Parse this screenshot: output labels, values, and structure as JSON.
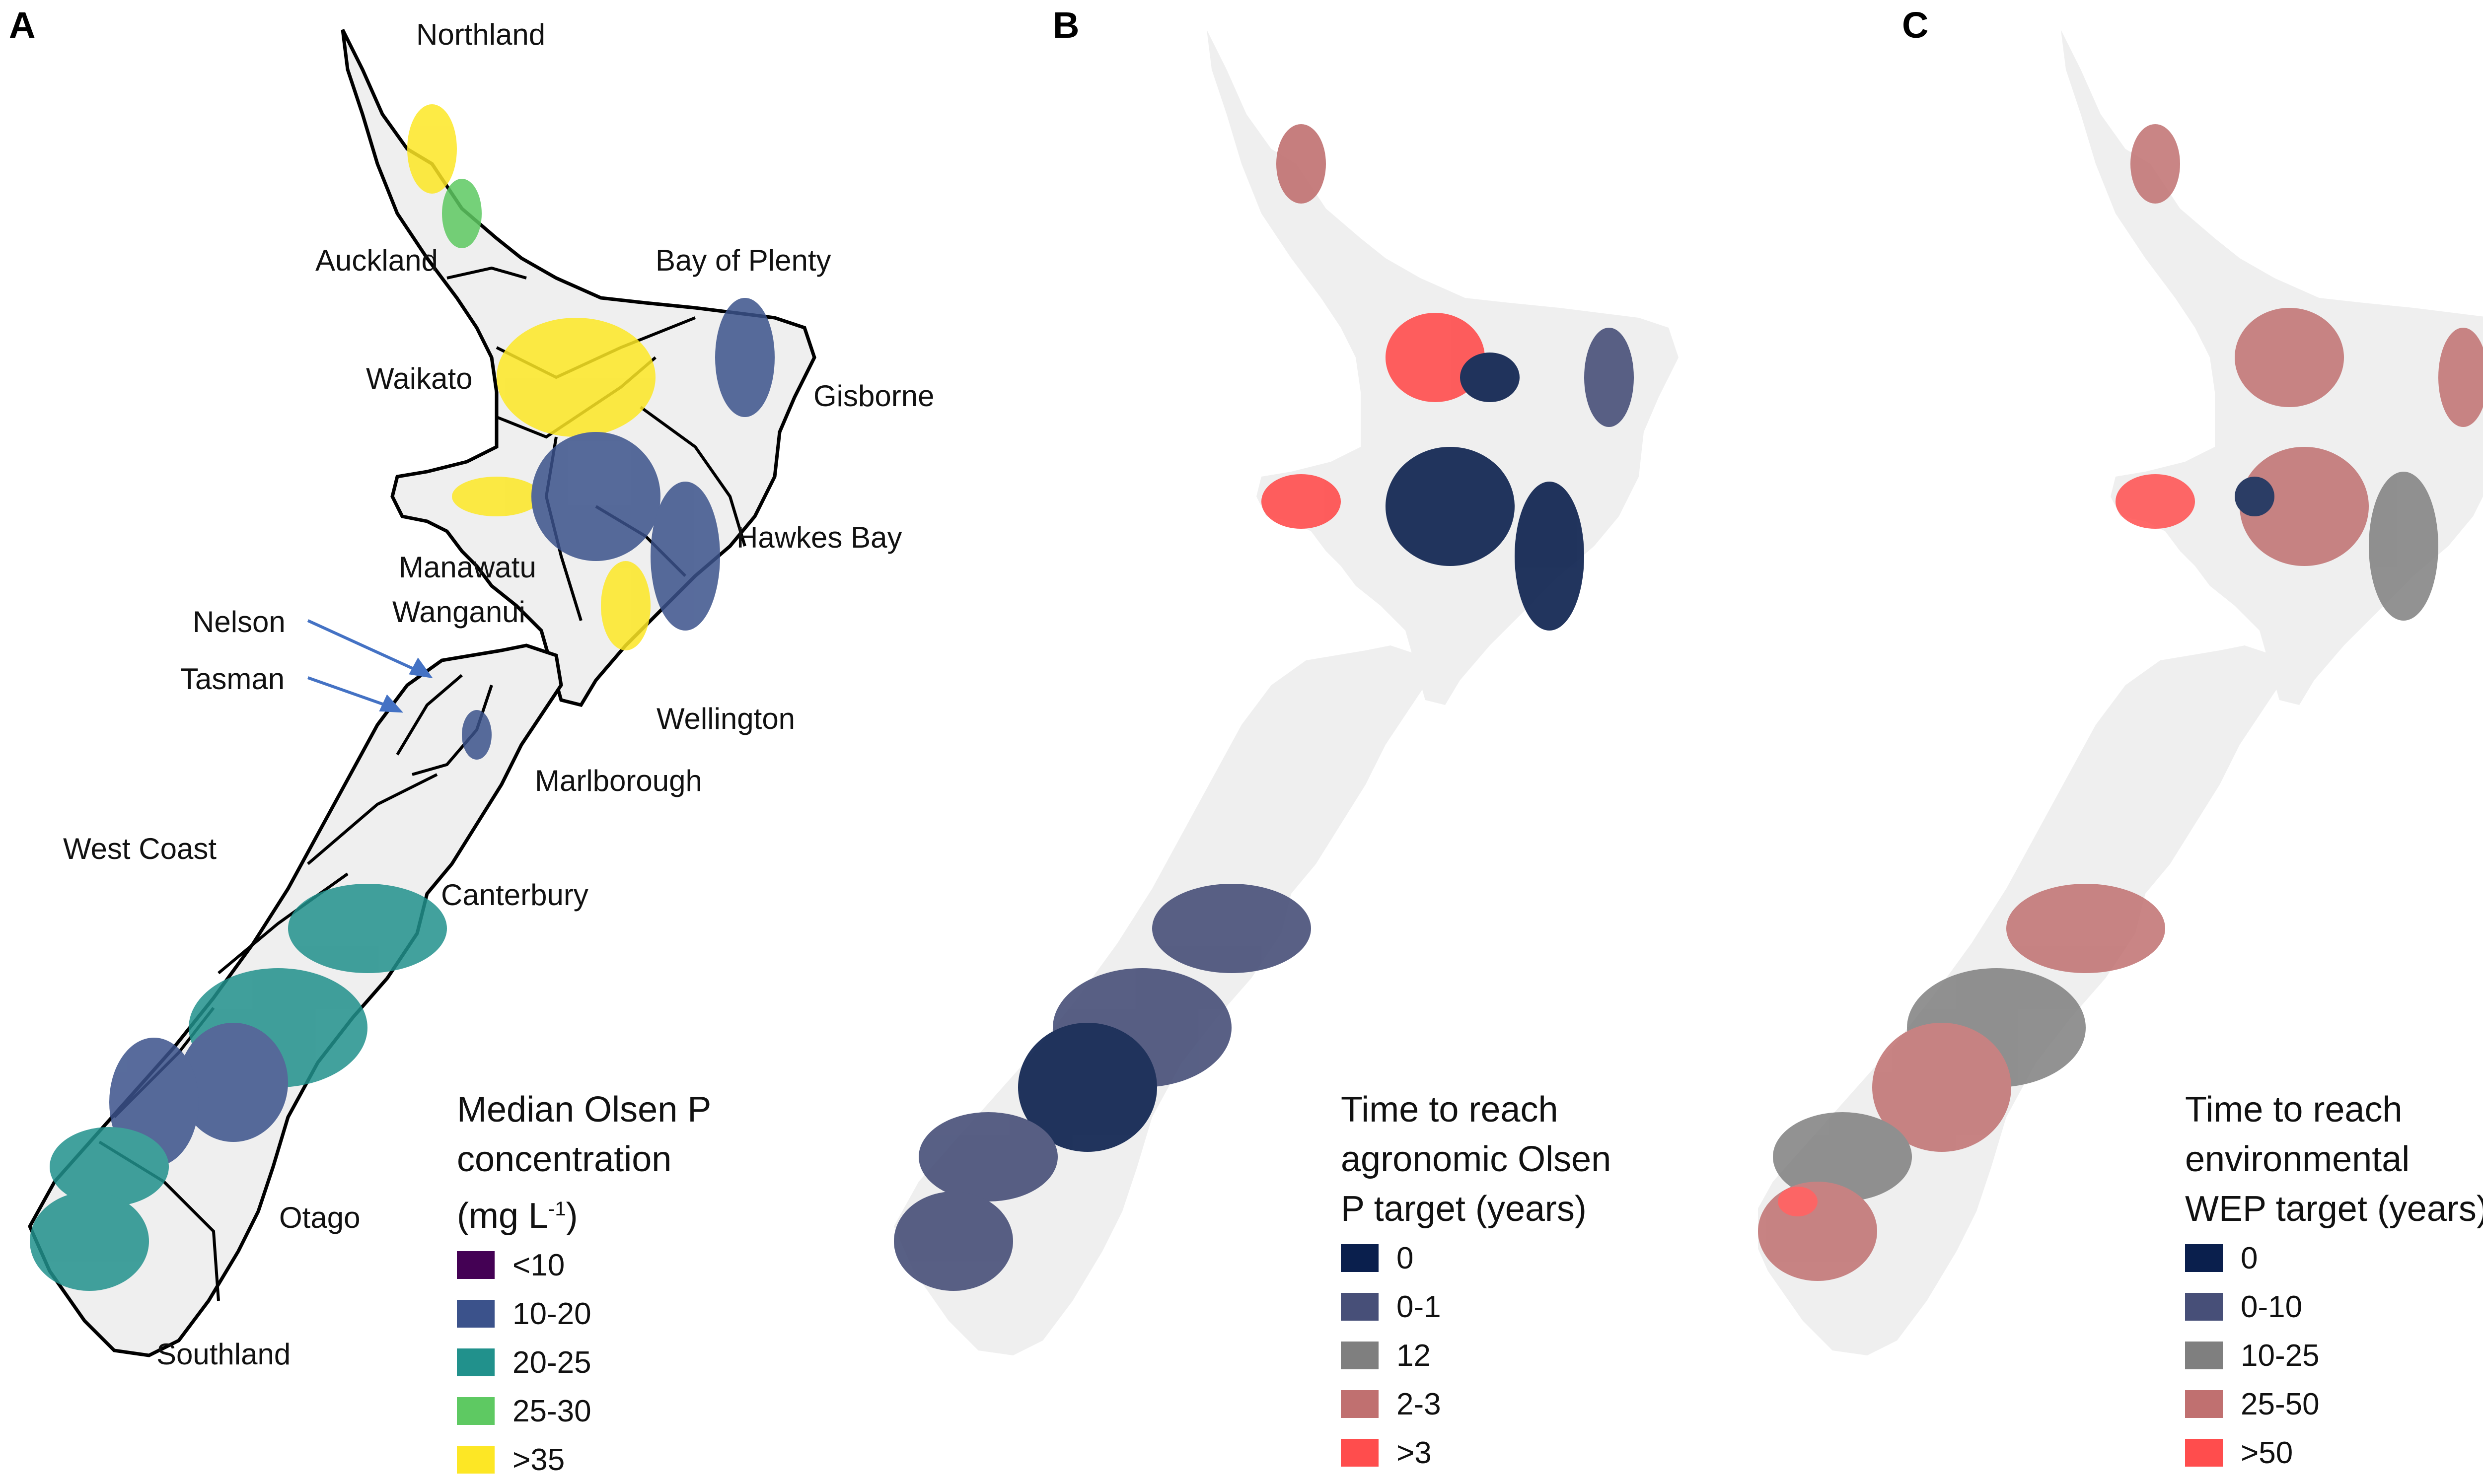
{
  "panels": [
    {
      "letter": "A",
      "legend": {
        "title_lines": [
          "Median Olsen P",
          "concentration"
        ],
        "unit_prefix": "(mg L",
        "unit_sup": "-1",
        "unit_suffix": ")",
        "items": [
          {
            "label": "<10",
            "color": "#440154"
          },
          {
            "label": "10-20",
            "color": "#3b528b"
          },
          {
            "label": "20-25",
            "color": "#21918c"
          },
          {
            "label": "25-30",
            "color": "#5ec962"
          },
          {
            "label": ">35",
            "color": "#fde725"
          }
        ]
      },
      "regions": [
        "Northland",
        "Auckland",
        "Bay of Plenty",
        "Waikato",
        "Gisborne",
        "Hawkes Bay",
        "Manawatu",
        "Wanganui",
        "Nelson",
        "Tasman",
        "Wellington",
        "Marlborough",
        "West Coast",
        "Canterbury",
        "Otago",
        "Southland"
      ]
    },
    {
      "letter": "B",
      "legend": {
        "title_lines": [
          "Time to reach",
          "agronomic Olsen",
          "P target (years)"
        ],
        "items": [
          {
            "label": "0",
            "color": "#0a1f4d"
          },
          {
            "label": "0-1",
            "color": "#474f78"
          },
          {
            "label": "12",
            "color": "#7f7f7f"
          },
          {
            "label": "2-3",
            "color": "#c07070"
          },
          {
            "label": ">3",
            "color": "#ff4d4d"
          }
        ]
      }
    },
    {
      "letter": "C",
      "legend": {
        "title_lines": [
          "Time to reach",
          "environmental",
          "WEP target (years)"
        ],
        "items": [
          {
            "label": "0",
            "color": "#0a1f4d"
          },
          {
            "label": "0-10",
            "color": "#474f78"
          },
          {
            "label": "10-25",
            "color": "#7f7f7f"
          },
          {
            "label": "25-50",
            "color": "#c07070"
          },
          {
            "label": ">50",
            "color": "#ff4d4d"
          }
        ]
      }
    }
  ],
  "map_colors": {
    "land_fill": "#efefef",
    "boundary": "#000000"
  }
}
